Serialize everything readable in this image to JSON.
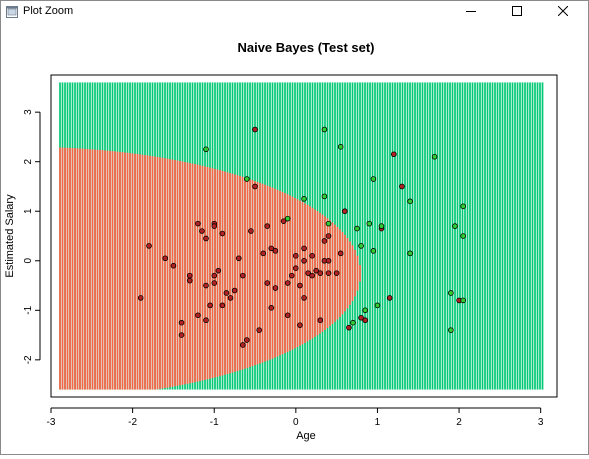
{
  "window": {
    "title": "Plot Zoom",
    "icons": {
      "app": "plot-zoom-app-icon",
      "minimize": "minimize-icon",
      "maximize": "maximize-icon",
      "close": "close-icon"
    }
  },
  "colors": {
    "region_0": "#FF6347",
    "region_1": "#00C875",
    "point_fill_0": "#B22222",
    "point_fill_1": "#32CD32",
    "point_stroke": "#000000",
    "stripe": "#ffffff"
  },
  "chart_data": {
    "type": "scatter",
    "title": "Naive Bayes (Test set)",
    "xlabel": "Age",
    "ylabel": "Estimated Salary",
    "xlim": [
      -3.0,
      3.2
    ],
    "ylim": [
      -2.75,
      3.75
    ],
    "x_ticks": [
      -3,
      -2,
      -1,
      0,
      1,
      2,
      3
    ],
    "y_ticks": [
      -2,
      -1,
      0,
      1,
      2,
      3
    ],
    "grid": false,
    "legend": "none",
    "background_grid": {
      "x_range": [
        -2.9,
        3.05
      ],
      "y_range": [
        -2.6,
        3.6
      ],
      "decision_boundary": "ellipse",
      "boundary_center": [
        -3.3,
        -0.25
      ],
      "boundary_radii": [
        4.1,
        2.55
      ],
      "class_inside": 0,
      "class_outside": 1
    },
    "points": [
      {
        "x": -1.9,
        "y": -0.75,
        "c": 0
      },
      {
        "x": -1.8,
        "y": 0.3,
        "c": 0
      },
      {
        "x": -1.6,
        "y": 0.05,
        "c": 0
      },
      {
        "x": -1.5,
        "y": -0.1,
        "c": 0
      },
      {
        "x": -1.4,
        "y": -1.25,
        "c": 0
      },
      {
        "x": -1.4,
        "y": -1.5,
        "c": 0
      },
      {
        "x": -1.3,
        "y": -0.3,
        "c": 0
      },
      {
        "x": -1.3,
        "y": -0.4,
        "c": 0
      },
      {
        "x": -1.2,
        "y": 0.75,
        "c": 0
      },
      {
        "x": -1.2,
        "y": -1.1,
        "c": 0
      },
      {
        "x": -1.15,
        "y": 0.6,
        "c": 0
      },
      {
        "x": -1.1,
        "y": 0.45,
        "c": 0
      },
      {
        "x": -1.1,
        "y": -0.5,
        "c": 0
      },
      {
        "x": -1.1,
        "y": -1.2,
        "c": 0
      },
      {
        "x": -1.05,
        "y": -0.9,
        "c": 0
      },
      {
        "x": -1.0,
        "y": 0.75,
        "c": 0
      },
      {
        "x": -1.0,
        "y": 0.7,
        "c": 0
      },
      {
        "x": -1.0,
        "y": -0.3,
        "c": 0
      },
      {
        "x": -1.0,
        "y": -0.45,
        "c": 0
      },
      {
        "x": -0.95,
        "y": -0.2,
        "c": 0
      },
      {
        "x": -0.9,
        "y": 0.55,
        "c": 0
      },
      {
        "x": -0.9,
        "y": -0.9,
        "c": 0
      },
      {
        "x": -0.85,
        "y": -0.65,
        "c": 0
      },
      {
        "x": -0.8,
        "y": -0.75,
        "c": 0
      },
      {
        "x": -0.75,
        "y": -0.6,
        "c": 0
      },
      {
        "x": -0.7,
        "y": 0.05,
        "c": 0
      },
      {
        "x": -0.65,
        "y": -0.3,
        "c": 0
      },
      {
        "x": -0.65,
        "y": -1.7,
        "c": 0
      },
      {
        "x": -0.6,
        "y": -1.6,
        "c": 0
      },
      {
        "x": -0.55,
        "y": 0.6,
        "c": 0
      },
      {
        "x": -0.5,
        "y": 2.65,
        "c": 0
      },
      {
        "x": -0.5,
        "y": 1.5,
        "c": 0
      },
      {
        "x": -0.45,
        "y": -1.4,
        "c": 0
      },
      {
        "x": -0.4,
        "y": 0.15,
        "c": 0
      },
      {
        "x": -0.35,
        "y": 0.7,
        "c": 0
      },
      {
        "x": -0.35,
        "y": -0.45,
        "c": 0
      },
      {
        "x": -0.3,
        "y": 0.25,
        "c": 0
      },
      {
        "x": -0.3,
        "y": -0.95,
        "c": 0
      },
      {
        "x": -0.25,
        "y": 0.2,
        "c": 0
      },
      {
        "x": -0.25,
        "y": -0.55,
        "c": 0
      },
      {
        "x": -0.15,
        "y": 0.8,
        "c": 0
      },
      {
        "x": -0.1,
        "y": -0.45,
        "c": 0
      },
      {
        "x": -0.1,
        "y": -1.1,
        "c": 0
      },
      {
        "x": -0.05,
        "y": -0.3,
        "c": 0
      },
      {
        "x": 0.0,
        "y": 0.1,
        "c": 0
      },
      {
        "x": 0.0,
        "y": -0.15,
        "c": 0
      },
      {
        "x": 0.05,
        "y": -1.3,
        "c": 0
      },
      {
        "x": 0.05,
        "y": -0.5,
        "c": 0
      },
      {
        "x": 0.1,
        "y": 0.25,
        "c": 0
      },
      {
        "x": 0.1,
        "y": 0.0,
        "c": 0
      },
      {
        "x": 0.1,
        "y": -0.75,
        "c": 0
      },
      {
        "x": 0.15,
        "y": -0.25,
        "c": 0
      },
      {
        "x": 0.2,
        "y": 0.1,
        "c": 0
      },
      {
        "x": 0.2,
        "y": -0.3,
        "c": 0
      },
      {
        "x": 0.25,
        "y": -0.2,
        "c": 0
      },
      {
        "x": 0.3,
        "y": -1.2,
        "c": 0
      },
      {
        "x": 0.3,
        "y": -0.25,
        "c": 0
      },
      {
        "x": 0.35,
        "y": 0.4,
        "c": 0
      },
      {
        "x": 0.35,
        "y": 0.0,
        "c": 0
      },
      {
        "x": 0.4,
        "y": 0.5,
        "c": 0
      },
      {
        "x": 0.4,
        "y": 0.0,
        "c": 0
      },
      {
        "x": 0.4,
        "y": -0.25,
        "c": 0
      },
      {
        "x": 0.5,
        "y": -0.25,
        "c": 0
      },
      {
        "x": 0.55,
        "y": 0.15,
        "c": 0
      },
      {
        "x": 0.6,
        "y": 1.0,
        "c": 0
      },
      {
        "x": 0.65,
        "y": -1.35,
        "c": 0
      },
      {
        "x": 0.8,
        "y": -1.15,
        "c": 0
      },
      {
        "x": 0.85,
        "y": -1.2,
        "c": 0
      },
      {
        "x": 1.05,
        "y": 0.65,
        "c": 0
      },
      {
        "x": 1.15,
        "y": -0.75,
        "c": 0
      },
      {
        "x": 1.2,
        "y": 2.15,
        "c": 0
      },
      {
        "x": 1.3,
        "y": 1.5,
        "c": 0
      },
      {
        "x": 2.0,
        "y": -0.8,
        "c": 0
      },
      {
        "x": -1.1,
        "y": 2.25,
        "c": 1
      },
      {
        "x": -0.6,
        "y": 1.65,
        "c": 1
      },
      {
        "x": -0.1,
        "y": 0.85,
        "c": 1
      },
      {
        "x": 0.1,
        "y": 1.25,
        "c": 1
      },
      {
        "x": 0.35,
        "y": 2.65,
        "c": 1
      },
      {
        "x": 0.35,
        "y": 1.3,
        "c": 1
      },
      {
        "x": 0.4,
        "y": 0.75,
        "c": 1
      },
      {
        "x": 0.55,
        "y": 2.3,
        "c": 1
      },
      {
        "x": 0.7,
        "y": -1.25,
        "c": 1
      },
      {
        "x": 0.75,
        "y": 0.65,
        "c": 1
      },
      {
        "x": 0.8,
        "y": 0.3,
        "c": 1
      },
      {
        "x": 0.85,
        "y": -1.0,
        "c": 1
      },
      {
        "x": 0.9,
        "y": 0.75,
        "c": 1
      },
      {
        "x": 0.95,
        "y": 1.65,
        "c": 1
      },
      {
        "x": 0.95,
        "y": 0.2,
        "c": 1
      },
      {
        "x": 1.0,
        "y": -0.9,
        "c": 1
      },
      {
        "x": 1.05,
        "y": 0.7,
        "c": 1
      },
      {
        "x": 1.4,
        "y": 1.2,
        "c": 1
      },
      {
        "x": 1.4,
        "y": 0.15,
        "c": 1
      },
      {
        "x": 1.7,
        "y": 2.1,
        "c": 1
      },
      {
        "x": 1.9,
        "y": -0.65,
        "c": 1
      },
      {
        "x": 1.9,
        "y": -1.4,
        "c": 1
      },
      {
        "x": 1.95,
        "y": 0.7,
        "c": 1
      },
      {
        "x": 2.05,
        "y": 1.1,
        "c": 1
      },
      {
        "x": 2.05,
        "y": 0.5,
        "c": 1
      },
      {
        "x": 2.05,
        "y": -0.8,
        "c": 1
      }
    ]
  }
}
